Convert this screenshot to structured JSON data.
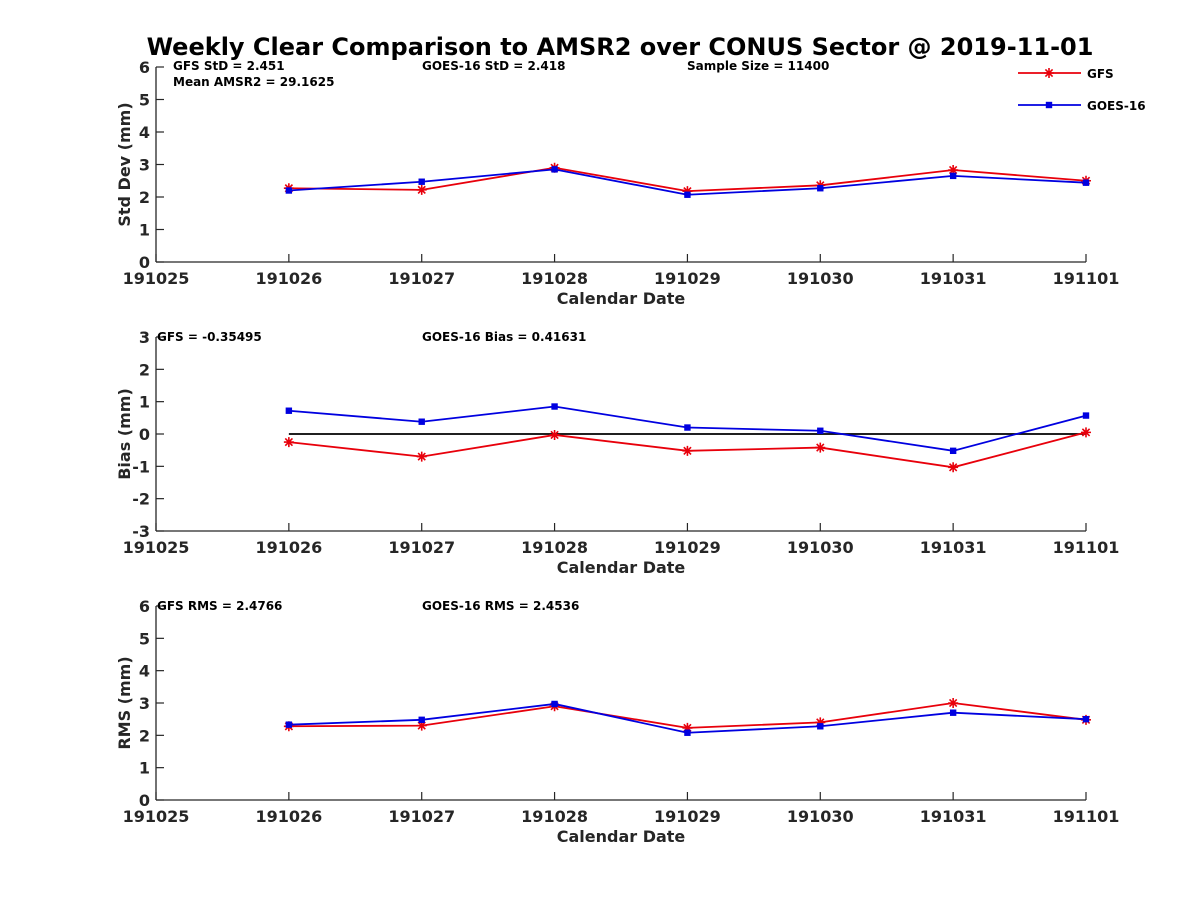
{
  "title": "Weekly Clear Comparison to AMSR2 over CONUS Sector @ 2019-11-01",
  "colors": {
    "GFS": "#e8000b",
    "GOES-16": "#0000e0",
    "axis": "#262626",
    "zero_line": "#000000"
  },
  "legend": {
    "placement": "top-right",
    "entries": [
      "GFS",
      "GOES-16"
    ]
  },
  "chart_data": [
    {
      "type": "line",
      "xlabel": "Calendar Date",
      "ylabel": "Std Dev (mm)",
      "ylim": [
        0,
        6
      ],
      "yticks": [
        "0",
        "1",
        "2",
        "3",
        "4",
        "5",
        "6"
      ],
      "xticks": [
        "191025",
        "191026",
        "191027",
        "191028",
        "191029",
        "191030",
        "191031",
        "191101"
      ],
      "grid": false,
      "x": [
        "191026",
        "191027",
        "191028",
        "191029",
        "191030",
        "191031",
        "191101"
      ],
      "series": [
        {
          "name": "GFS",
          "marker": "asterisk",
          "values": [
            2.27,
            2.22,
            2.9,
            2.18,
            2.36,
            2.83,
            2.5
          ]
        },
        {
          "name": "GOES-16",
          "marker": "square",
          "values": [
            2.2,
            2.47,
            2.85,
            2.07,
            2.27,
            2.65,
            2.44
          ]
        }
      ],
      "annotations": [
        {
          "text": "GFS StD = 2.451"
        },
        {
          "text": "Mean AMSR2 = 29.1625"
        },
        {
          "text": "GOES-16 StD = 2.418"
        },
        {
          "text": "Sample Size = 11400"
        }
      ]
    },
    {
      "type": "line",
      "xlabel": "Calendar Date",
      "ylabel": "Bias (mm)",
      "ylim": [
        -3,
        3
      ],
      "yticks": [
        "-3",
        "-2",
        "-1",
        "0",
        "1",
        "2",
        "3"
      ],
      "xticks": [
        "191025",
        "191026",
        "191027",
        "191028",
        "191029",
        "191030",
        "191031",
        "191101"
      ],
      "grid": false,
      "zero_line": true,
      "x": [
        "191026",
        "191027",
        "191028",
        "191029",
        "191030",
        "191031",
        "191101"
      ],
      "series": [
        {
          "name": "GFS",
          "marker": "asterisk",
          "values": [
            -0.25,
            -0.7,
            -0.03,
            -0.52,
            -0.42,
            -1.03,
            0.05
          ]
        },
        {
          "name": "GOES-16",
          "marker": "square",
          "values": [
            0.72,
            0.38,
            0.85,
            0.2,
            0.1,
            -0.52,
            0.57
          ]
        }
      ],
      "annotations": [
        {
          "text": "GFS = -0.35495"
        },
        {
          "text": "GOES-16 Bias  = 0.41631"
        }
      ]
    },
    {
      "type": "line",
      "xlabel": "Calendar Date",
      "ylabel": "RMS (mm)",
      "ylim": [
        0,
        6
      ],
      "yticks": [
        "0",
        "1",
        "2",
        "3",
        "4",
        "5",
        "6"
      ],
      "xticks": [
        "191025",
        "191026",
        "191027",
        "191028",
        "191029",
        "191030",
        "191031",
        "191101"
      ],
      "grid": false,
      "x": [
        "191026",
        "191027",
        "191028",
        "191029",
        "191030",
        "191031",
        "191101"
      ],
      "series": [
        {
          "name": "GFS",
          "marker": "asterisk",
          "values": [
            2.28,
            2.3,
            2.9,
            2.23,
            2.4,
            3.0,
            2.48
          ]
        },
        {
          "name": "GOES-16",
          "marker": "square",
          "values": [
            2.33,
            2.48,
            2.97,
            2.08,
            2.28,
            2.7,
            2.5
          ]
        }
      ],
      "annotations": [
        {
          "text": "GFS RMS = 2.4766"
        },
        {
          "text": "GOES-16 RMS = 2.4536"
        }
      ]
    }
  ]
}
